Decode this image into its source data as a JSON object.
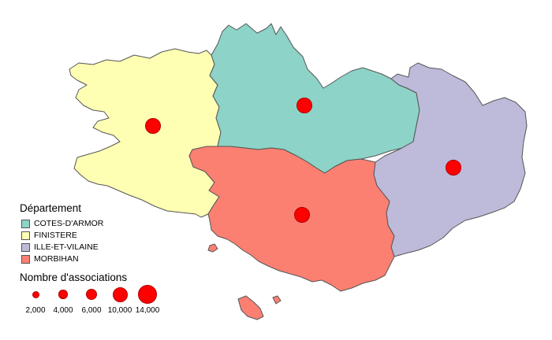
{
  "legend": {
    "departement_title": "Département",
    "departements": [
      {
        "label": "COTES-D'ARMOR",
        "color": "#8dd3c7"
      },
      {
        "label": "FINISTERE",
        "color": "#ffffb3"
      },
      {
        "label": "ILLE-ET-VILAINE",
        "color": "#bebada"
      },
      {
        "label": "MORBIHAN",
        "color": "#fb8072"
      }
    ],
    "size_title": "Nombre d'associations",
    "sizes": [
      {
        "label": "2,000",
        "value": 2000
      },
      {
        "label": "4,000",
        "value": 4000
      },
      {
        "label": "6,000",
        "value": 6000
      },
      {
        "label": "10,000",
        "value": 10000
      },
      {
        "label": "14,000",
        "value": 14000
      }
    ]
  },
  "symbol_color": "#ff0000"
}
